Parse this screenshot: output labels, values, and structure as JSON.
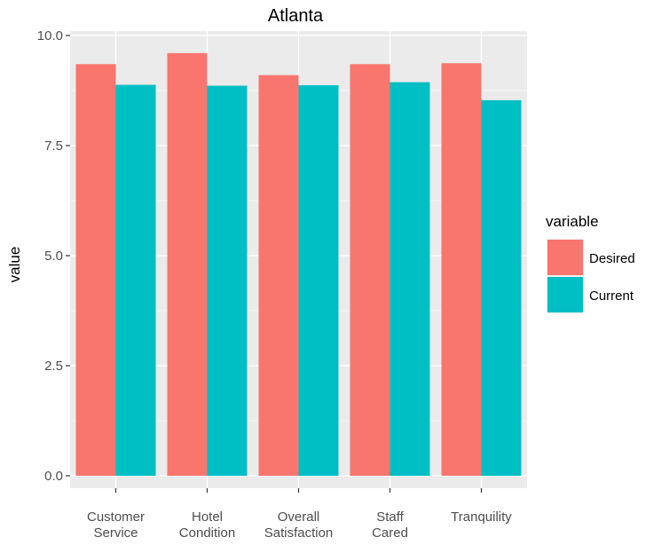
{
  "chart_data": {
    "type": "bar",
    "title": "Atlanta",
    "xlabel": "",
    "ylabel": "value",
    "categories": [
      [
        "Customer",
        "Service"
      ],
      [
        "Hotel",
        "Condition"
      ],
      [
        "Overall",
        "Satisfaction"
      ],
      [
        "Staff",
        "Cared"
      ],
      [
        "Tranquility"
      ]
    ],
    "series": [
      {
        "name": "Desired",
        "color": "#F8766D",
        "values": [
          9.35,
          9.6,
          9.1,
          9.35,
          9.37
        ]
      },
      {
        "name": "Current",
        "color": "#00BFC4",
        "values": [
          8.88,
          8.86,
          8.87,
          8.94,
          8.53
        ]
      }
    ],
    "ylim": [
      0,
      10
    ],
    "yticks": [
      0,
      2.5,
      5,
      7.5,
      10
    ],
    "ytick_labels": [
      "0.0",
      "2.5",
      "5.0",
      "7.5",
      "10.0"
    ],
    "grid": true,
    "legend": {
      "title": "variable",
      "position": "right"
    },
    "panel_background": "#EBEBEB"
  }
}
